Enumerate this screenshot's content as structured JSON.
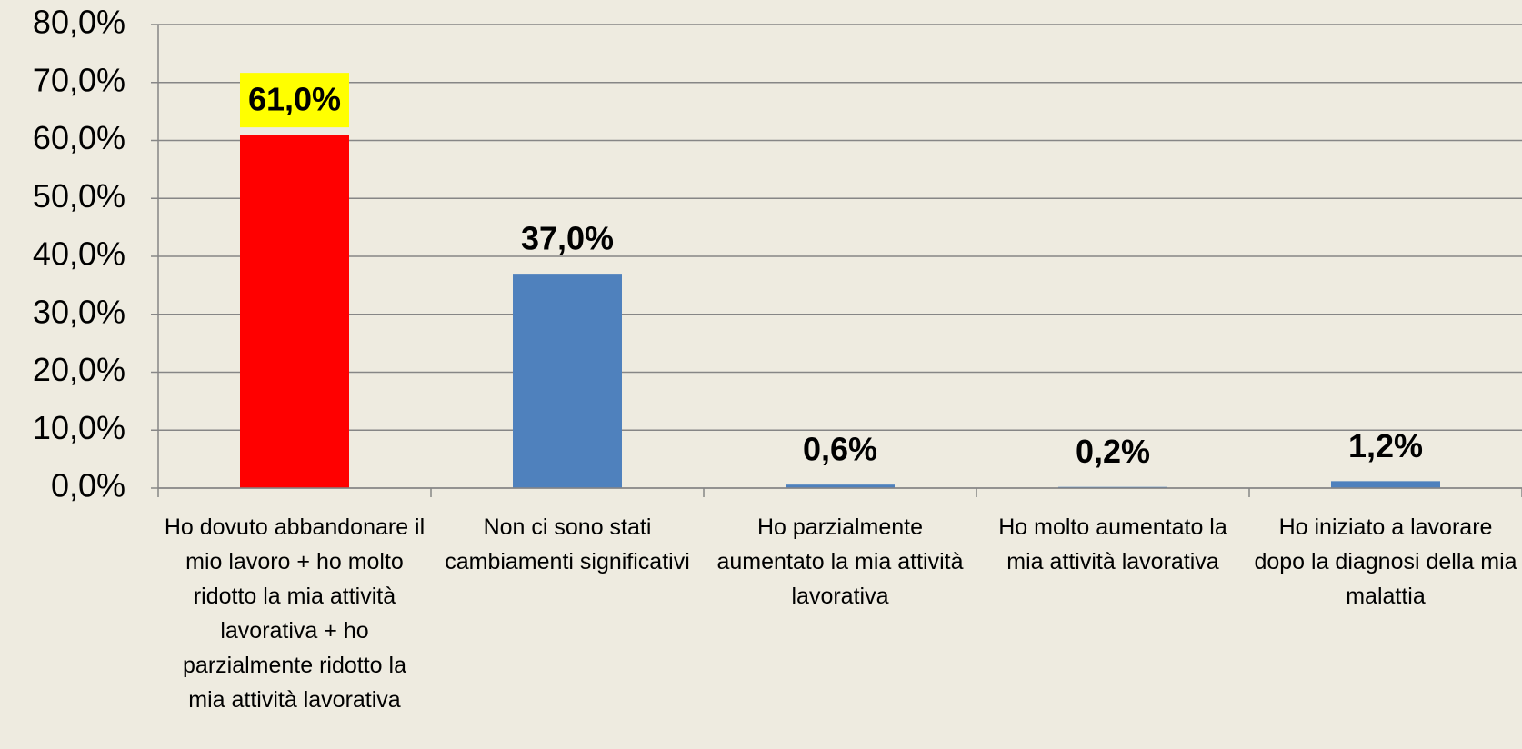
{
  "chart_data": {
    "type": "bar",
    "categories": [
      "Ho dovuto abbandonare il mio lavoro + ho molto ridotto la mia attività lavorativa + ho parzialmente ridotto la mia attività lavorativa",
      "Non  ci sono stati cambiamenti significativi",
      "Ho parzialmente aumentato la mia attività lavorativa",
      "Ho molto aumentato la mia attività lavorativa",
      "Ho iniziato a lavorare dopo la diagnosi della mia malattia"
    ],
    "values": [
      61,
      37,
      0.6,
      0.2,
      1.2
    ],
    "value_labels": [
      "61,0%",
      "37,0%",
      "0,6%",
      "0,2%",
      "1,2%"
    ],
    "colors": [
      "#ff0000",
      "#4f81bd",
      "#4f81bd",
      "#4f81bd",
      "#4f81bd"
    ],
    "label_backgrounds": [
      "#ffff00",
      null,
      null,
      null,
      null
    ],
    "ylim": [
      0,
      80
    ],
    "yticks": [
      {
        "value": 0,
        "label": "0,0%"
      },
      {
        "value": 10,
        "label": "10,0%"
      },
      {
        "value": 20,
        "label": "20,0%"
      },
      {
        "value": 30,
        "label": "30,0%"
      },
      {
        "value": 40,
        "label": "40,0%"
      },
      {
        "value": 50,
        "label": "50,0%"
      },
      {
        "value": 60,
        "label": "60,0%"
      },
      {
        "value": 70,
        "label": "70,0%"
      },
      {
        "value": 80,
        "label": "80,0%"
      }
    ],
    "grid": true
  }
}
